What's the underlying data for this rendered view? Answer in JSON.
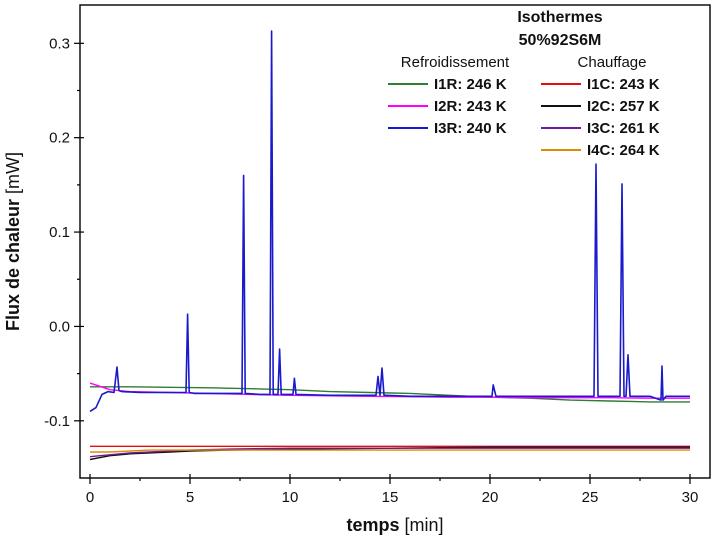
{
  "chart_data": {
    "type": "line",
    "xlabel_bold": "temps",
    "xlabel_unit": " [min]",
    "ylabel_bold": "Flux de chaleur",
    "ylabel_unit": " [mW]",
    "xlim": [
      0,
      30
    ],
    "ylim": [
      -0.15,
      0.33
    ],
    "xticks": [
      0,
      5,
      10,
      15,
      20,
      25,
      30
    ],
    "yticks": [
      -0.1,
      0.0,
      0.1,
      0.2,
      0.3
    ],
    "xtick_labels": [
      "0",
      "5",
      "10",
      "15",
      "20",
      "25",
      "30"
    ],
    "ytick_labels": [
      "-0.1",
      "0.0",
      "0.1",
      "0.2",
      "0.3"
    ],
    "legend": {
      "title_line1": "Isothermes",
      "title_line2": "50%92S6M",
      "group_left_title": "Refroidissement",
      "group_right_title": "Chauffage",
      "placement": "top-right"
    },
    "series": [
      {
        "name": "I1R: 246 K",
        "group": "Refroidissement",
        "color": "#2e7d32",
        "x": [
          0,
          2,
          4,
          6,
          8,
          10,
          12,
          14,
          16,
          18,
          20,
          22,
          24,
          26,
          28,
          30
        ],
        "y": [
          -0.064,
          -0.064,
          -0.0645,
          -0.065,
          -0.066,
          -0.067,
          -0.069,
          -0.07,
          -0.071,
          -0.073,
          -0.075,
          -0.076,
          -0.078,
          -0.079,
          -0.08,
          -0.08
        ]
      },
      {
        "name": "I2R: 243 K",
        "group": "Refroidissement",
        "color": "#ff00ff",
        "x": [
          0,
          1,
          2,
          4,
          6,
          8,
          10,
          12,
          14,
          16,
          18,
          20,
          22,
          24,
          26,
          28,
          30
        ],
        "y": [
          -0.06,
          -0.067,
          -0.069,
          -0.07,
          -0.071,
          -0.072,
          -0.073,
          -0.0735,
          -0.074,
          -0.0745,
          -0.075,
          -0.075,
          -0.0755,
          -0.0755,
          -0.0755,
          -0.076,
          -0.076
        ]
      },
      {
        "name": "I3R: 240 K",
        "group": "Refroidissement",
        "color": "#1a1acc",
        "x": [
          0,
          0.3,
          0.6,
          0.9,
          1.2,
          1.35,
          1.45,
          1.6,
          2.5,
          3.5,
          4.8,
          4.88,
          4.96,
          5.2,
          6.5,
          7.6,
          7.68,
          7.76,
          8.5,
          9.0,
          9.08,
          9.16,
          9.4,
          9.48,
          9.56,
          10.15,
          10.22,
          10.3,
          12,
          14.3,
          14.4,
          14.5,
          14.6,
          14.7,
          14.8,
          16,
          18,
          20.1,
          20.16,
          20.3,
          22,
          24,
          25.2,
          25.3,
          25.4,
          26,
          26.5,
          26.6,
          26.7,
          26.8,
          26.9,
          27.0,
          27.1,
          28,
          28.55,
          28.6,
          28.65,
          28.8,
          30
        ],
        "y": [
          -0.09,
          -0.086,
          -0.072,
          -0.069,
          -0.07,
          -0.043,
          -0.068,
          -0.069,
          -0.07,
          -0.07,
          -0.07,
          0.013,
          -0.07,
          -0.071,
          -0.071,
          -0.071,
          0.16,
          -0.071,
          -0.072,
          -0.072,
          0.313,
          -0.072,
          -0.072,
          -0.024,
          -0.072,
          -0.072,
          -0.055,
          -0.072,
          -0.073,
          -0.073,
          -0.053,
          -0.073,
          -0.044,
          -0.073,
          -0.073,
          -0.074,
          -0.074,
          -0.074,
          -0.062,
          -0.074,
          -0.074,
          -0.074,
          -0.074,
          0.172,
          -0.074,
          -0.074,
          -0.074,
          0.151,
          -0.074,
          -0.074,
          -0.03,
          -0.074,
          -0.074,
          -0.074,
          -0.078,
          -0.042,
          -0.078,
          -0.074,
          -0.074
        ]
      },
      {
        "name": "I1C: 243 K",
        "group": "Chauffage",
        "color": "#e01010",
        "x": [
          0,
          5,
          10,
          15,
          20,
          25,
          30
        ],
        "y": [
          -0.127,
          -0.127,
          -0.127,
          -0.127,
          -0.127,
          -0.127,
          -0.127
        ]
      },
      {
        "name": "I2C: 257 K",
        "group": "Chauffage",
        "color": "#111111",
        "x": [
          0,
          0.5,
          1,
          2,
          3,
          4,
          5,
          7,
          10,
          15,
          20,
          25,
          30
        ],
        "y": [
          -0.141,
          -0.139,
          -0.137,
          -0.135,
          -0.134,
          -0.133,
          -0.132,
          -0.131,
          -0.13,
          -0.129,
          -0.128,
          -0.128,
          -0.128
        ]
      },
      {
        "name": "I3C: 261 K",
        "group": "Chauffage",
        "color": "#6a1b9a",
        "x": [
          0,
          0.5,
          1,
          2,
          3,
          5,
          7,
          10,
          15,
          20,
          25,
          30
        ],
        "y": [
          -0.138,
          -0.137,
          -0.136,
          -0.134,
          -0.133,
          -0.131,
          -0.13,
          -0.129,
          -0.129,
          -0.129,
          -0.129,
          -0.129
        ]
      },
      {
        "name": "I4C: 264 K",
        "group": "Chauffage",
        "color": "#e08a00",
        "x": [
          0,
          1,
          2,
          3,
          5,
          7,
          10,
          15,
          20,
          25,
          30
        ],
        "y": [
          -0.133,
          -0.133,
          -0.132,
          -0.131,
          -0.131,
          -0.131,
          -0.131,
          -0.131,
          -0.131,
          -0.131,
          -0.131
        ]
      }
    ]
  }
}
